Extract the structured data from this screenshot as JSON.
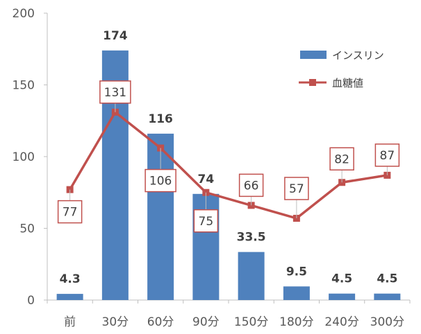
{
  "chart_data": {
    "type": "bar",
    "categories": [
      "前",
      "30分",
      "60分",
      "90分",
      "150分",
      "180分",
      "240分",
      "300分"
    ],
    "ylim": [
      0,
      200
    ],
    "yticks": [
      0,
      50,
      100,
      150,
      200
    ],
    "grid": false,
    "legend_position": "top-right",
    "series": [
      {
        "name": "インスリン",
        "type": "bar",
        "color": "#4F81BD",
        "values": [
          4.3,
          174,
          116,
          74,
          33.5,
          9.5,
          4.5,
          4.5
        ],
        "labels": [
          "4.3",
          "174",
          "116",
          "74",
          "33.5",
          "9.5",
          "4.5",
          "4.5"
        ]
      },
      {
        "name": "血糖値",
        "type": "line",
        "color": "#C0504D",
        "marker": "square",
        "values": [
          77,
          131,
          106,
          75,
          66,
          57,
          82,
          87
        ],
        "labels": [
          "77",
          "131",
          "106",
          "75",
          "66",
          "57",
          "82",
          "87"
        ]
      }
    ]
  }
}
